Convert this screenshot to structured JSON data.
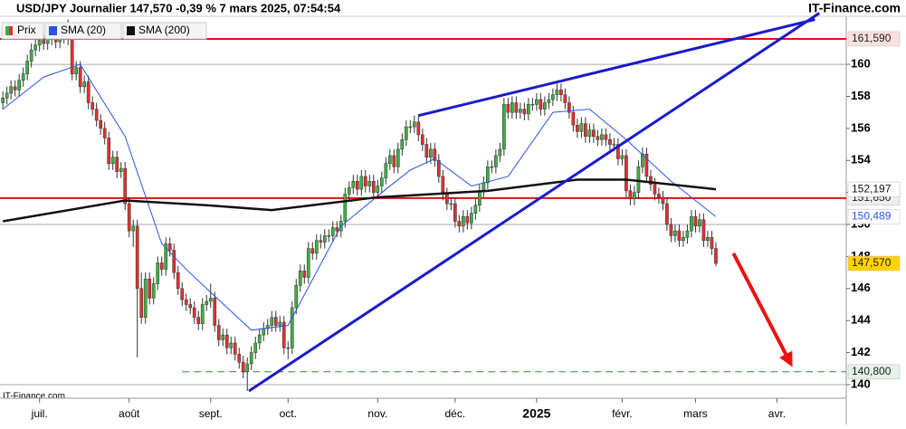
{
  "chart_data": {
    "type": "candlestick",
    "title": "USD/JPY Journalier 147,570 -0,39 % 7 mars 2025, 07:54:54",
    "brand": "IT-Finance.com",
    "watermark": "IT-Finance.com",
    "legend": [
      "Prix",
      "SMA (20)",
      "SMA (200)"
    ],
    "up_color": "#3cb043",
    "down_color": "#e03030",
    "ylim": [
      139.15,
      163.0
    ],
    "yticks": [
      140,
      142,
      144,
      146,
      148,
      150,
      152,
      154,
      156,
      158,
      160
    ],
    "major_grid": [
      140,
      150,
      160
    ],
    "xlim": [
      -0.7,
      207
    ],
    "xticks": [
      {
        "value": 9,
        "label": "juil."
      },
      {
        "value": 31,
        "label": "août"
      },
      {
        "value": 51,
        "label": "sept."
      },
      {
        "value": 70,
        "label": "oct."
      },
      {
        "value": 92,
        "label": "nov."
      },
      {
        "value": 111,
        "label": "déc."
      },
      {
        "value": 131,
        "label": "2025"
      },
      {
        "value": 152,
        "label": "févr."
      },
      {
        "value": 170,
        "label": "mars"
      },
      {
        "value": 190,
        "label": "avr."
      }
    ],
    "bold_xtick": 6,
    "open": [
      157.6,
      157.9,
      158.2,
      158.6,
      158.4,
      159.0,
      159.4,
      160.2,
      160.9,
      161.2,
      161.5,
      161.3,
      161.6,
      161.7,
      161.4,
      161.7,
      162.0,
      161.6,
      159.4,
      159.8,
      158.6,
      158.9,
      157.6,
      157.2,
      156.5,
      156.0,
      155.4,
      153.8,
      154.2,
      153.3,
      153.5,
      151.3,
      149.6,
      149.9,
      146.0,
      144.2,
      146.6,
      145.4,
      146.3,
      147.6,
      147.2,
      148.8,
      148.4,
      147.0,
      146.0,
      145.3,
      145.0,
      144.8,
      144.2,
      143.8,
      145.0,
      145.2,
      145.4,
      143.7,
      142.8,
      143.1,
      142.3,
      142.6,
      141.9,
      141.4,
      140.8,
      141.3,
      142.0,
      142.6,
      143.1,
      143.5,
      143.7,
      144.2,
      143.7,
      143.9,
      142.3,
      142.3,
      144.8,
      146.2,
      147.1,
      146.7,
      148.5,
      148.2,
      149.0,
      148.9,
      149.3,
      149.3,
      149.8,
      149.6,
      150.2,
      151.9,
      152.3,
      152.7,
      152.2,
      153.0,
      152.4,
      152.7,
      152.0,
      152.4,
      152.9,
      153.8,
      154.3,
      153.6,
      154.7,
      155.3,
      156.1,
      156.1,
      156.4,
      155.6,
      155.0,
      154.2,
      154.7,
      154.0,
      153.0,
      151.9,
      151.3,
      151.3,
      150.2,
      149.9,
      150.5,
      150.1,
      150.7,
      151.2,
      152.1,
      152.6,
      153.6,
      153.6,
      154.3,
      154.7,
      157.5,
      157.0,
      157.6,
      157.0,
      157.2,
      156.9,
      157.5,
      157.5,
      157.8,
      157.2,
      157.6,
      157.8,
      158.1,
      158.4,
      158.1,
      157.6,
      157.0,
      156.2,
      155.8,
      156.3,
      155.5,
      155.9,
      155.5,
      155.3,
      155.6,
      155.3,
      155.0,
      155.0,
      154.1,
      154.3,
      152.1,
      151.6,
      152.0,
      153.6,
      154.4,
      153.0,
      152.5,
      151.9,
      151.7,
      151.3,
      150.0,
      149.3,
      149.6,
      149.0,
      149.2,
      149.6,
      150.5,
      149.9,
      150.3,
      149.0,
      149.2,
      148.5
    ],
    "high": [
      158.3,
      158.6,
      159.0,
      159.0,
      159.4,
      159.8,
      160.6,
      161.3,
      161.6,
      161.9,
      161.9,
      162.0,
      162.1,
      162.1,
      162.1,
      162.4,
      162.8,
      162.0,
      160.2,
      160.2,
      159.3,
      159.3,
      158.0,
      157.6,
      156.9,
      156.4,
      155.8,
      154.6,
      154.6,
      153.9,
      153.9,
      151.7,
      150.3,
      150.3,
      147.0,
      147.0,
      147.0,
      146.7,
      148.0,
      148.0,
      149.2,
      149.2,
      148.8,
      147.4,
      146.4,
      145.7,
      145.4,
      145.2,
      144.6,
      145.4,
      145.6,
      146.3,
      145.8,
      144.1,
      143.5,
      143.5,
      143.0,
      143.0,
      142.3,
      141.8,
      141.7,
      142.4,
      143.0,
      143.5,
      143.9,
      144.1,
      144.6,
      144.6,
      144.3,
      144.3,
      142.7,
      145.2,
      146.6,
      147.5,
      147.5,
      148.9,
      148.9,
      149.4,
      149.4,
      149.7,
      149.7,
      150.2,
      150.2,
      150.6,
      152.3,
      152.7,
      153.1,
      153.1,
      153.4,
      153.4,
      153.1,
      153.1,
      152.8,
      153.3,
      154.2,
      154.7,
      154.7,
      155.1,
      155.7,
      156.5,
      156.5,
      156.8,
      156.8,
      156.0,
      155.4,
      155.1,
      155.1,
      154.4,
      153.4,
      152.3,
      151.7,
      151.7,
      150.6,
      150.9,
      150.9,
      151.1,
      151.6,
      152.5,
      153.0,
      154.0,
      154.0,
      154.7,
      155.1,
      157.9,
      157.9,
      158.0,
      158.0,
      157.6,
      157.6,
      157.9,
      157.9,
      158.2,
      158.2,
      158.0,
      158.2,
      158.5,
      158.8,
      158.8,
      158.5,
      158.0,
      157.4,
      156.6,
      156.7,
      156.7,
      156.3,
      156.3,
      155.9,
      156.0,
      156.0,
      155.7,
      155.4,
      155.4,
      154.7,
      154.7,
      152.5,
      152.4,
      154.0,
      154.8,
      154.8,
      153.4,
      152.9,
      152.3,
      152.1,
      151.7,
      150.4,
      150.0,
      150.0,
      149.6,
      150.0,
      150.9,
      150.9,
      150.7,
      150.7,
      149.6,
      149.6,
      148.9
    ],
    "low": [
      157.2,
      157.5,
      157.8,
      158.0,
      158.0,
      158.6,
      159.0,
      159.8,
      160.5,
      160.8,
      160.9,
      160.9,
      161.2,
      161.0,
      161.0,
      161.3,
      161.2,
      159.0,
      159.0,
      158.2,
      158.2,
      157.2,
      156.8,
      156.1,
      155.6,
      155.0,
      153.4,
      153.4,
      152.9,
      152.9,
      150.9,
      149.2,
      148.6,
      141.7,
      143.8,
      143.8,
      145.0,
      145.0,
      145.9,
      146.8,
      146.8,
      148.0,
      146.6,
      145.6,
      144.9,
      144.6,
      144.4,
      143.8,
      143.4,
      143.4,
      144.6,
      144.8,
      143.3,
      142.4,
      142.4,
      141.9,
      141.9,
      141.5,
      141.0,
      140.4,
      139.6,
      140.9,
      141.6,
      142.2,
      142.7,
      143.1,
      143.3,
      143.3,
      143.3,
      141.9,
      141.6,
      141.9,
      144.4,
      145.8,
      146.3,
      146.3,
      147.8,
      147.8,
      148.5,
      148.5,
      148.9,
      148.9,
      149.2,
      149.2,
      149.8,
      151.5,
      151.9,
      151.8,
      151.8,
      152.0,
      152.0,
      151.6,
      151.6,
      152.0,
      152.5,
      153.4,
      153.2,
      153.2,
      154.3,
      154.9,
      155.7,
      155.7,
      155.2,
      154.6,
      153.8,
      153.8,
      153.6,
      152.6,
      151.5,
      150.9,
      150.9,
      149.8,
      149.5,
      149.5,
      149.7,
      149.7,
      150.3,
      150.8,
      151.7,
      152.2,
      153.2,
      153.2,
      153.9,
      154.3,
      156.6,
      156.6,
      156.6,
      156.6,
      156.5,
      156.5,
      157.1,
      157.1,
      156.8,
      156.8,
      157.2,
      157.4,
      157.7,
      157.7,
      157.2,
      156.6,
      155.8,
      155.4,
      155.4,
      155.1,
      155.1,
      155.1,
      154.9,
      154.9,
      154.9,
      154.6,
      154.6,
      153.7,
      153.7,
      151.7,
      151.2,
      151.2,
      151.6,
      153.2,
      152.6,
      152.1,
      151.5,
      151.3,
      150.9,
      149.6,
      148.9,
      148.9,
      148.6,
      148.6,
      148.8,
      149.2,
      149.5,
      149.5,
      148.6,
      148.6,
      148.1,
      147.4
    ],
    "close": [
      157.9,
      158.2,
      158.6,
      158.4,
      159.0,
      159.4,
      160.2,
      160.9,
      161.2,
      161.5,
      161.3,
      161.6,
      161.7,
      161.4,
      161.7,
      162.0,
      161.6,
      159.4,
      159.8,
      158.6,
      158.9,
      157.6,
      157.2,
      156.5,
      156.0,
      155.4,
      153.8,
      154.2,
      153.3,
      153.5,
      151.3,
      149.6,
      149.9,
      146.0,
      144.2,
      146.6,
      145.4,
      146.3,
      147.6,
      147.2,
      148.8,
      148.4,
      147.0,
      146.0,
      145.3,
      145.0,
      144.8,
      144.2,
      143.8,
      145.0,
      145.2,
      145.4,
      143.7,
      142.8,
      143.1,
      142.3,
      142.6,
      141.9,
      141.4,
      140.8,
      141.3,
      142.0,
      142.6,
      143.1,
      143.5,
      143.7,
      144.2,
      143.7,
      143.9,
      142.3,
      142.3,
      144.8,
      146.2,
      147.1,
      146.7,
      148.5,
      148.2,
      149.0,
      148.9,
      149.3,
      149.3,
      149.8,
      149.6,
      150.2,
      151.9,
      152.3,
      152.7,
      152.2,
      153.0,
      152.4,
      152.7,
      152.0,
      152.4,
      152.9,
      153.8,
      154.3,
      153.6,
      154.7,
      155.3,
      156.1,
      156.1,
      156.4,
      155.6,
      155.0,
      154.2,
      154.7,
      154.0,
      153.0,
      151.9,
      151.3,
      151.3,
      150.2,
      149.9,
      150.5,
      150.1,
      150.7,
      151.2,
      152.1,
      152.6,
      153.6,
      153.6,
      154.3,
      154.7,
      157.5,
      157.0,
      157.6,
      157.0,
      157.2,
      156.9,
      157.5,
      157.5,
      157.8,
      157.2,
      157.6,
      157.8,
      158.1,
      158.4,
      158.1,
      157.6,
      157.0,
      156.2,
      155.8,
      156.3,
      155.5,
      155.9,
      155.5,
      155.3,
      155.6,
      155.3,
      155.0,
      155.0,
      154.1,
      154.3,
      152.1,
      151.6,
      152.0,
      153.6,
      154.4,
      153.0,
      152.5,
      151.9,
      151.7,
      151.3,
      150.0,
      149.3,
      149.6,
      149.0,
      149.2,
      149.6,
      150.5,
      149.9,
      150.3,
      149.0,
      149.2,
      148.5,
      147.57
    ],
    "last_label": "147,570",
    "last_label_color": "#ffd200",
    "series": [
      {
        "name": "SMA (20)",
        "color": "#2a55e5",
        "width": 1,
        "x": [
          0,
          10,
          19,
          30,
          39,
          45,
          50,
          61,
          70,
          83,
          95,
          100,
          106,
          115,
          124,
          135,
          144,
          153,
          164,
          175
        ],
        "values": [
          157.2,
          159.2,
          160.0,
          155.5,
          148.8,
          147.2,
          146.0,
          143.4,
          143.7,
          149.9,
          152.4,
          153.4,
          154.1,
          152.4,
          153.0,
          157.0,
          157.2,
          155.3,
          152.7,
          150.489
        ],
        "last_label": "150,489"
      },
      {
        "name": "SMA (200)",
        "color": "#111111",
        "width": 2.5,
        "x": [
          0,
          30,
          50,
          66,
          92,
          119,
          141,
          153,
          175
        ],
        "values": [
          150.2,
          151.5,
          151.2,
          150.9,
          151.7,
          152.1,
          152.8,
          152.8,
          152.197
        ],
        "last_label": "152,197"
      }
    ],
    "hlines": [
      {
        "value": 161.59,
        "label": "161,590",
        "color": "#e01010",
        "style": "solid"
      },
      {
        "value": 151.65,
        "label": "151,650",
        "color": "#e01010",
        "style": "solid"
      },
      {
        "value": 140.8,
        "label": "140,800",
        "color": "#2e8b2e",
        "style": "dashed",
        "from": 44
      }
    ],
    "trendlines": [
      {
        "x": [
          60.4,
          200.4
        ],
        "values": [
          139.6,
          163.2
        ],
        "color": "#1a1acc"
      },
      {
        "x": [
          102,
          199.3
        ],
        "values": [
          156.8,
          162.8
        ],
        "color": "#1a1acc"
      }
    ],
    "arrow": {
      "x": [
        179.3,
        193.8
      ],
      "values": [
        148.2,
        141.1
      ],
      "color": "#ee1111"
    }
  }
}
